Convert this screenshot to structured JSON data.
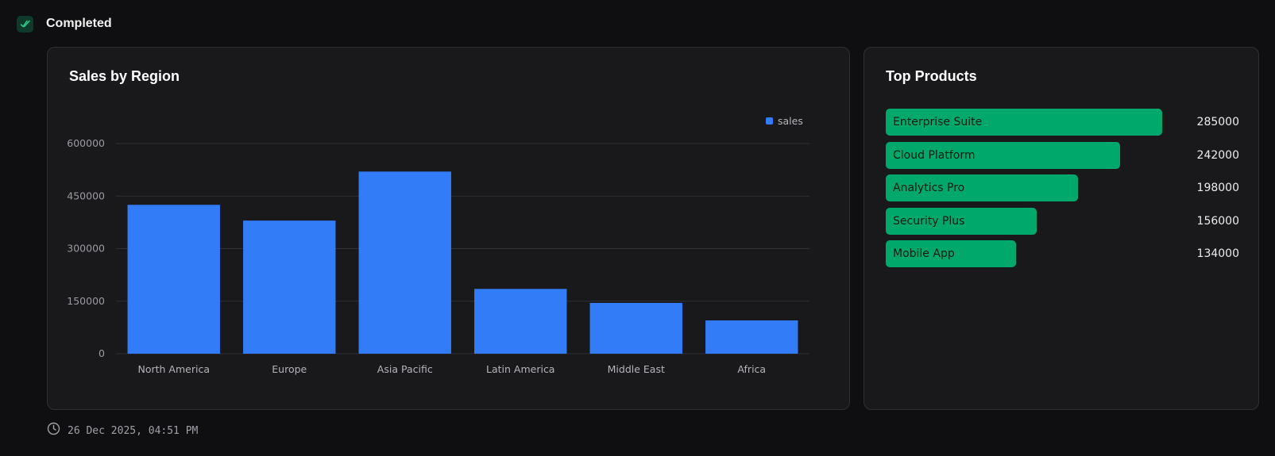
{
  "status": {
    "label": "Completed",
    "icon": "double-check-icon",
    "color": "#2fd08c"
  },
  "sales_card": {
    "title": "Sales by Region"
  },
  "products_card": {
    "title": "Top Products"
  },
  "chart_data": [
    {
      "type": "bar",
      "title": "Sales by Region",
      "categories": [
        "North America",
        "Europe",
        "Asia Pacific",
        "Latin America",
        "Middle East",
        "Africa"
      ],
      "series": [
        {
          "name": "sales",
          "color": "#337cf8",
          "values": [
            425000,
            380000,
            520000,
            185000,
            145000,
            95000
          ]
        }
      ],
      "yticks": [
        "0",
        "150000",
        "300000",
        "450000",
        "600000"
      ],
      "ylim": [
        0,
        600000
      ],
      "grid": true,
      "legend_position": "top-right"
    },
    {
      "type": "bar",
      "orientation": "horizontal",
      "title": "Top Products",
      "categories": [
        "Enterprise Suite",
        "Cloud Platform",
        "Analytics Pro",
        "Security Plus",
        "Mobile App"
      ],
      "values": [
        285000,
        242000,
        198000,
        156000,
        134000
      ],
      "value_labels": [
        "285000",
        "242000",
        "198000",
        "156000",
        "134000"
      ],
      "color": "#00a86b"
    }
  ],
  "timestamp": {
    "icon": "clock-icon",
    "text": "26 Dec 2025, 04:51 PM"
  }
}
